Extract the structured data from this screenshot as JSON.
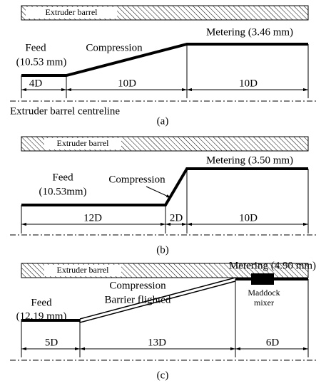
{
  "panels": [
    {
      "barrel": "Extruder barrel",
      "feed": "Feed",
      "feed_depth": "(10.53 mm)",
      "compression": "Compression",
      "metering": "Metering (3.46 mm)",
      "dims": [
        "4D",
        "10D",
        "10D"
      ],
      "centreline": "Extruder barrel centreline",
      "caption": "(a)"
    },
    {
      "barrel": "Extruder barrel",
      "feed": "Feed",
      "feed_depth": "(10.53mm)",
      "compression": "Compression",
      "metering": "Metering (3.50 mm)",
      "dims": [
        "12D",
        "2D",
        "10D"
      ],
      "caption": "(b)"
    },
    {
      "barrel": "Extruder barrel",
      "feed": "Feed",
      "feed_depth": "(12.19 mm)",
      "compression": "Compression",
      "compression_note": "Barrier flighted",
      "metering": "Metering (4.90 mm)",
      "mixer": [
        "Maddock",
        "mixer"
      ],
      "dims": [
        "5D",
        "13D",
        "6D"
      ],
      "caption": "(c)"
    }
  ]
}
